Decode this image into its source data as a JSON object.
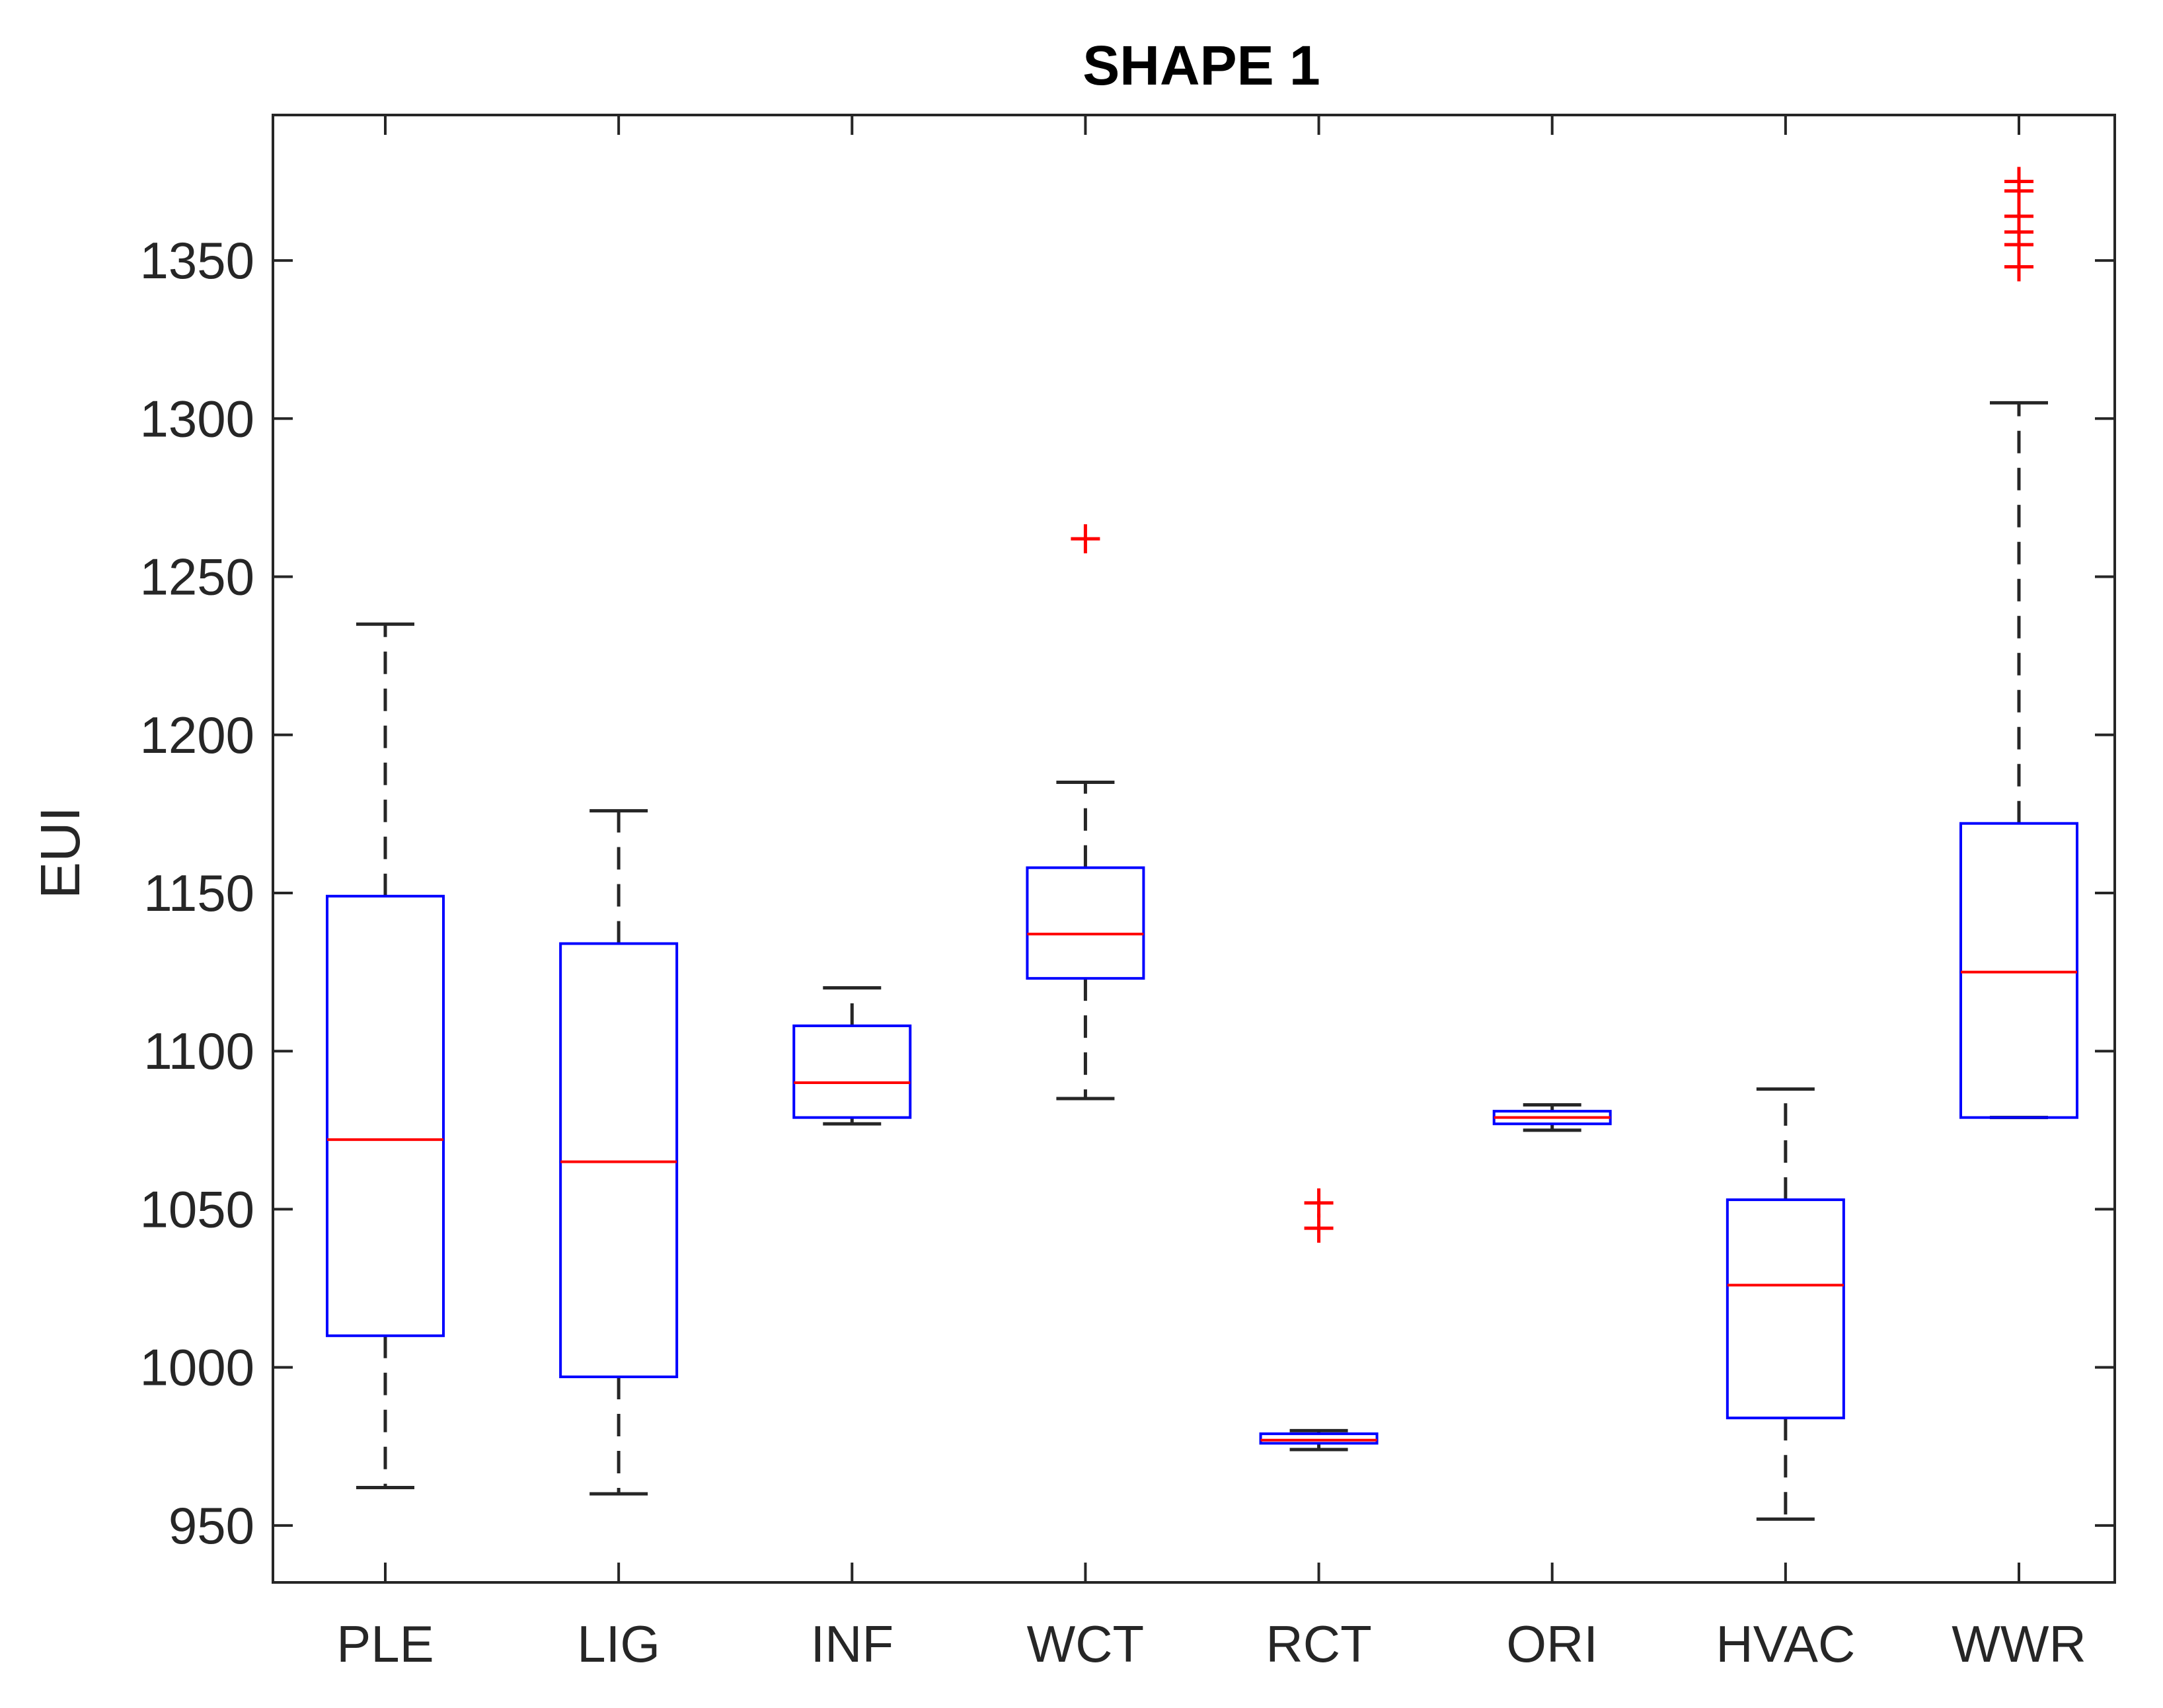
{
  "chart_data": {
    "type": "boxplot",
    "title": "SHAPE 1",
    "xlabel": "",
    "ylabel": "EUI",
    "ylim": [
      932,
      1396
    ],
    "yticks": [
      950,
      1000,
      1050,
      1100,
      1150,
      1200,
      1250,
      1300,
      1350
    ],
    "ytick_labels": [
      "950",
      "1000",
      "1050",
      "1100",
      "1150",
      "1200",
      "1250",
      "1300",
      "1350"
    ],
    "grid": false,
    "categories": [
      "PLE",
      "LIG",
      "INF",
      "WCT",
      "RCT",
      "ORI",
      "HVAC",
      "WWR"
    ],
    "boxes": [
      {
        "label": "PLE",
        "whisker_low": 962,
        "q1": 1010,
        "median": 1072,
        "q3": 1149,
        "whisker_high": 1235,
        "outliers": []
      },
      {
        "label": "LIG",
        "whisker_low": 960,
        "q1": 997,
        "median": 1065,
        "q3": 1134,
        "whisker_high": 1176,
        "outliers": []
      },
      {
        "label": "INF",
        "whisker_low": 1077,
        "q1": 1079,
        "median": 1090,
        "q3": 1108,
        "whisker_high": 1120,
        "outliers": []
      },
      {
        "label": "WCT",
        "whisker_low": 1085,
        "q1": 1123,
        "median": 1137,
        "q3": 1158,
        "whisker_high": 1185,
        "outliers": [
          1262
        ]
      },
      {
        "label": "RCT",
        "whisker_low": 974,
        "q1": 976,
        "median": 977,
        "q3": 979,
        "whisker_high": 980,
        "outliers": [
          1044,
          1052
        ]
      },
      {
        "label": "ORI",
        "whisker_low": 1075,
        "q1": 1077,
        "median": 1079,
        "q3": 1081,
        "whisker_high": 1083,
        "outliers": []
      },
      {
        "label": "HVAC",
        "whisker_low": 952,
        "q1": 984,
        "median": 1026,
        "q3": 1053,
        "whisker_high": 1088,
        "outliers": []
      },
      {
        "label": "WWR",
        "whisker_low": 1079,
        "q1": 1079,
        "median": 1125,
        "q3": 1172,
        "whisker_high": 1305,
        "outliers": [
          1348,
          1355,
          1359,
          1364,
          1372,
          1375
        ]
      }
    ],
    "colors": {
      "box": "#0000ff",
      "median": "#ff0000",
      "whisker": "#262626",
      "outlier": "#ff0000",
      "axes": "#262626"
    }
  }
}
